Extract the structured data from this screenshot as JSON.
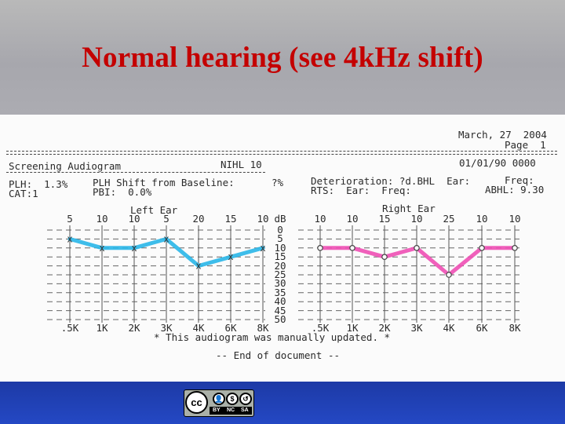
{
  "slide": {
    "title": "Normal hearing (see 4kHz shift)"
  },
  "report": {
    "date": "March, 27  2004",
    "page": "Page  1",
    "test_name": "Screening Audiogram",
    "nihl": "NIHL 10",
    "test_date": "01/01/90 0000",
    "plh": "PLH:  1.3%",
    "cat": "CAT:1",
    "plh_shift": "PLH Shift from Baseline:",
    "plh_shift_value": "?%",
    "pbi": "PBI:  0.0%",
    "deterioration": "Deterioration: ?d.BHL  Ear:",
    "freq_label": "Freq:",
    "rts": "RTS:  Ear:  Freq:",
    "abhl": "ABHL: 9.30",
    "left_ear_label": "Left Ear",
    "right_ear_label": "Right Ear",
    "db_label": "dB",
    "db_scale": [
      "0",
      "5",
      "10",
      "15",
      "20",
      "25",
      "30",
      "35",
      "40",
      "45",
      "50"
    ],
    "note": "* This audiogram was manually updated. *",
    "end": "-- End of document --"
  },
  "chart_data": {
    "type": "line",
    "x": [
      ".5K",
      "1K",
      "2K",
      "3K",
      "4K",
      "6K",
      "8K"
    ],
    "ylabel": "dB",
    "ylim": [
      0,
      50
    ],
    "y_inverted": true,
    "series": [
      {
        "name": "Left Ear",
        "values": [
          5,
          10,
          10,
          5,
          20,
          15,
          10
        ],
        "marker": "x",
        "color": "#29b6e8"
      },
      {
        "name": "Right Ear",
        "values": [
          10,
          10,
          15,
          10,
          25,
          10,
          10
        ],
        "marker": "o",
        "color": "#ee4fb4"
      }
    ]
  },
  "license": {
    "cc": "cc",
    "by": "BY",
    "nc": "NC",
    "sa": "SA"
  }
}
